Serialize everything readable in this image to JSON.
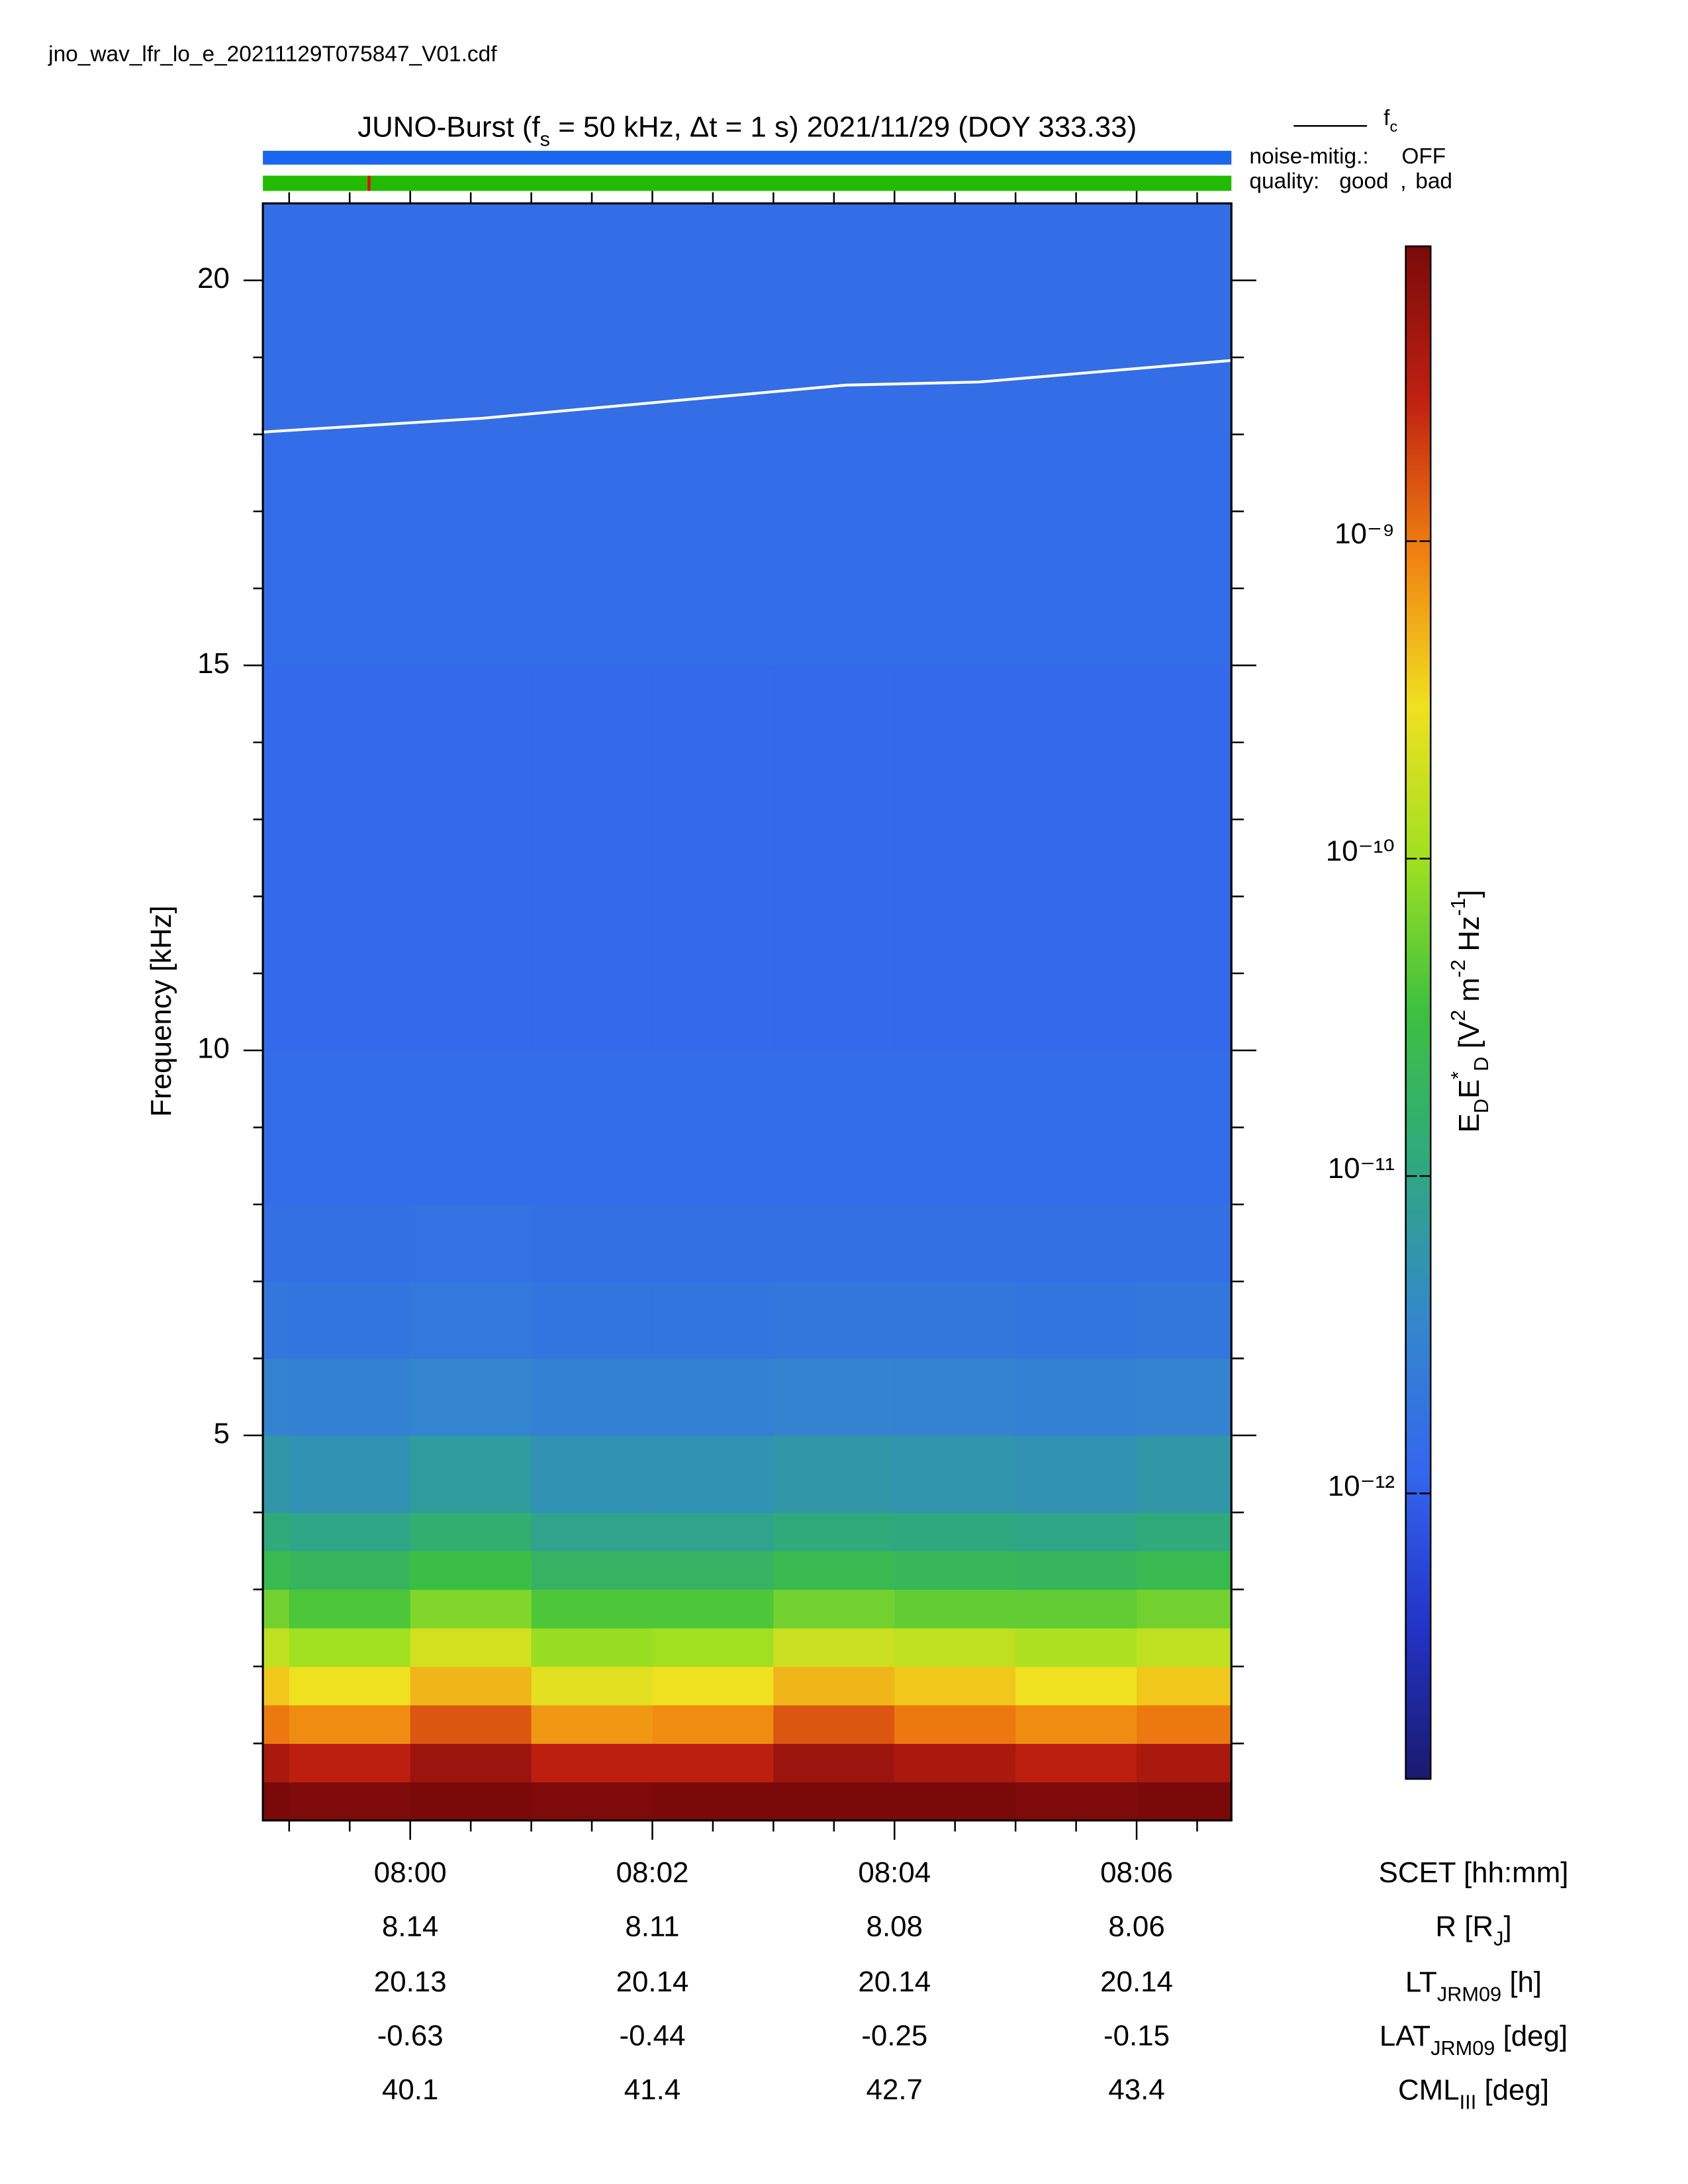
{
  "file_name": "jno_wav_lfr_lo_e_20211129T075847_V01.cdf",
  "chart_data": {
    "type": "spectrogram",
    "title_parts": [
      {
        "text": "JUNO-Burst (f"
      },
      {
        "text": "s",
        "shift": "sub"
      },
      {
        "text": " = 50 kHz, Δt = 1 s)  2021/11/29 (DOY 333.33)"
      }
    ],
    "y_label": "Frequency [kHz]",
    "xlim": [
      478.783,
      486.783
    ],
    "xticks": [
      {
        "value": 480,
        "label": "08:00"
      },
      {
        "value": 482,
        "label": "08:02"
      },
      {
        "value": 484,
        "label": "08:04"
      },
      {
        "value": 486,
        "label": "08:06"
      }
    ],
    "xminorticks": [
      479,
      479.5,
      480.5,
      481,
      481.5,
      482.5,
      483,
      483.5,
      484.5,
      485,
      485.5,
      486.5
    ],
    "ylim": [
      0,
      21
    ],
    "yticks": [
      5,
      10,
      15,
      20
    ],
    "yminorticks": [
      1,
      2,
      3,
      4,
      6,
      7,
      8,
      9,
      11,
      12,
      13,
      14,
      16,
      17,
      18,
      19
    ],
    "xbins": [
      478.783,
      479,
      480,
      481,
      482,
      483,
      484,
      485,
      486,
      486.783
    ],
    "ybins": [
      0,
      0.5,
      1,
      1.5,
      2,
      2.5,
      3,
      3.5,
      4,
      5,
      6,
      7,
      8,
      10,
      12,
      15,
      18,
      21
    ],
    "z": [
      [
        9e-09,
        8e-09,
        1e-08,
        8e-09,
        9e-09,
        1e-08,
        9e-09,
        8e-09,
        9e-09
      ],
      [
        4e-09,
        3e-09,
        5e-09,
        3e-09,
        3e-09,
        5e-09,
        4e-09,
        3e-09,
        4e-09
      ],
      [
        1e-09,
        8e-10,
        1.5e-09,
        7e-10,
        8e-10,
        1.5e-09,
        1e-09,
        8e-10,
        1e-09
      ],
      [
        4e-10,
        3e-10,
        5e-10,
        2.5e-10,
        3e-10,
        5e-10,
        4e-10,
        3e-10,
        4e-10
      ],
      [
        1.5e-10,
        1e-10,
        2e-10,
        9e-11,
        1e-10,
        1.8e-10,
        1.5e-10,
        1.2e-10,
        1.5e-10
      ],
      [
        6e-11,
        4e-11,
        7e-11,
        4e-11,
        4e-11,
        6e-11,
        5e-11,
        5e-11,
        6e-11
      ],
      [
        2.5e-11,
        2e-11,
        3e-11,
        1.8e-11,
        1.8e-11,
        2.5e-11,
        2.2e-11,
        2e-11,
        2.5e-11
      ],
      [
        1.2e-11,
        1e-11,
        1.4e-11,
        9e-12,
        9e-12,
        1.2e-11,
        1.1e-11,
        1e-11,
        1.2e-11
      ],
      [
        6e-12,
        5e-12,
        7e-12,
        5e-12,
        5e-12,
        6e-12,
        5.5e-12,
        5e-12,
        6e-12
      ],
      [
        3e-12,
        2.8e-12,
        3.2e-12,
        2.8e-12,
        2.8e-12,
        3e-12,
        3e-12,
        2.8e-12,
        3e-12
      ],
      [
        2e-12,
        1.9e-12,
        2.1e-12,
        1.9e-12,
        1.9e-12,
        2e-12,
        2e-12,
        1.9e-12,
        2e-12
      ],
      [
        1.6e-12,
        1.6e-12,
        1.7e-12,
        1.6e-12,
        1.6e-12,
        1.6e-12,
        1.6e-12,
        1.6e-12,
        1.6e-12
      ],
      [
        1.4e-12,
        1.4e-12,
        1.4e-12,
        1.4e-12,
        1.4e-12,
        1.4e-12,
        1.4e-12,
        1.4e-12,
        1.4e-12
      ],
      [
        1.3e-12,
        1.3e-12,
        1.3e-12,
        1.3e-12,
        1.3e-12,
        1.3e-12,
        1.3e-12,
        1.3e-12,
        1.3e-12
      ],
      [
        1.3e-12,
        1.3e-12,
        1.3e-12,
        1.3e-12,
        1.3e-12,
        1.3e-12,
        1.3e-12,
        1.3e-12,
        1.3e-12
      ],
      [
        1.4e-12,
        1.4e-12,
        1.4e-12,
        1.4e-12,
        1.4e-12,
        1.4e-12,
        1.4e-12,
        1.4e-12,
        1.4e-12
      ],
      [
        1.5e-12,
        1.5e-12,
        1.5e-12,
        1.5e-12,
        1.5e-12,
        1.5e-12,
        1.5e-12,
        1.5e-12,
        1.5e-12
      ]
    ],
    "cscale": "log",
    "clim": [
      1.26e-13,
      8.5e-09
    ],
    "colormap": [
      "#1a1a6e",
      "#2233c8",
      "#3366ee",
      "#3388cc",
      "#2fa880",
      "#3cc040",
      "#a0e020",
      "#f0e020",
      "#f08010",
      "#c02010",
      "#7a0a0a"
    ],
    "cticks": [
      {
        "value": 1e-12,
        "label": "10⁻¹²"
      },
      {
        "value": 1e-11,
        "label": "10⁻¹¹"
      },
      {
        "value": 1e-10,
        "label": "10⁻¹⁰"
      },
      {
        "value": 1e-09,
        "label": "10⁻⁹"
      }
    ],
    "clabel_parts": [
      {
        "text": "E"
      },
      {
        "text": "D",
        "shift": "sub"
      },
      {
        "text": "E"
      },
      {
        "text": "*",
        "shift": "super"
      },
      {
        "text": "D",
        "shift": "sub"
      },
      {
        "text": " [V"
      },
      {
        "text": "2",
        "shift": "super"
      },
      {
        "text": " m"
      },
      {
        "text": "-2",
        "shift": "super"
      },
      {
        "text": " Hz"
      },
      {
        "text": "-1",
        "shift": "super"
      },
      {
        "text": "]"
      }
    ],
    "series": [
      {
        "name": "f",
        "name_sub": "c",
        "color": "#ffffff",
        "x": [
          478.783,
          480.6,
          483.6,
          484.7,
          486.783
        ],
        "values": [
          18.03,
          18.21,
          18.64,
          18.68,
          18.96
        ]
      }
    ],
    "status": {
      "noise_label": "noise-mitig.:",
      "noise_value": "OFF",
      "noise_color": "#1a66ee",
      "quality_label": "quality:",
      "good": "good",
      "sep": ",",
      "bad": "bad",
      "good_color": "#22bb00",
      "bad_color": "#ee0000",
      "bad_x": [
        479.66
      ]
    },
    "ephemeris": {
      "x_label": "SCET [hh:mm]",
      "rows": [
        {
          "label_parts": [
            {
              "text": "R [R"
            },
            {
              "text": "J",
              "shift": "sub"
            },
            {
              "text": "]"
            }
          ],
          "values": [
            8.14,
            8.11,
            8.08,
            8.06
          ]
        },
        {
          "label_parts": [
            {
              "text": "LT"
            },
            {
              "text": "JRM09",
              "shift": "sub"
            },
            {
              "text": " [h]"
            }
          ],
          "values": [
            20.13,
            20.14,
            20.14,
            20.14
          ]
        },
        {
          "label_parts": [
            {
              "text": "LAT"
            },
            {
              "text": "JRM09",
              "shift": "sub"
            },
            {
              "text": " [deg]"
            }
          ],
          "values": [
            -0.63,
            -0.44,
            -0.25,
            -0.15
          ]
        },
        {
          "label_parts": [
            {
              "text": "CML"
            },
            {
              "text": "III",
              "shift": "sub"
            },
            {
              "text": " [deg]"
            }
          ],
          "values": [
            40.1,
            41.4,
            42.7,
            43.4
          ]
        }
      ]
    }
  }
}
